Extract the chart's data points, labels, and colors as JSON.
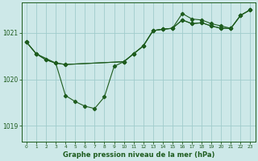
{
  "background_color": "#cde8e8",
  "grid_color": "#a0cccc",
  "line_color": "#1e5c1e",
  "title": "Graphe pression niveau de la mer (hPa)",
  "xlim": [
    -0.5,
    23.5
  ],
  "ylim": [
    1018.65,
    1021.65
  ],
  "yticks": [
    1019,
    1020,
    1021
  ],
  "xticks": [
    0,
    1,
    2,
    3,
    4,
    5,
    6,
    7,
    8,
    9,
    10,
    11,
    12,
    13,
    14,
    15,
    16,
    17,
    18,
    19,
    20,
    21,
    22,
    23
  ],
  "series": [
    {
      "x": [
        0,
        1,
        3,
        4,
        10,
        11,
        12,
        13,
        14,
        15,
        16,
        17,
        18,
        19,
        20,
        21,
        22,
        23
      ],
      "y": [
        1020.8,
        1020.55,
        1020.35,
        1020.32,
        1020.38,
        1020.55,
        1020.72,
        1021.05,
        1021.08,
        1021.1,
        1021.42,
        1021.3,
        1021.28,
        1021.2,
        1021.15,
        1021.1,
        1021.38,
        1021.5
      ]
    },
    {
      "x": [
        0,
        1,
        2,
        3,
        4,
        10,
        11,
        12,
        13,
        14,
        15,
        16,
        17,
        18,
        19,
        20,
        21,
        22,
        23
      ],
      "y": [
        1020.8,
        1020.55,
        1020.42,
        1020.35,
        1020.32,
        1020.38,
        1020.55,
        1020.72,
        1021.05,
        1021.08,
        1021.1,
        1021.28,
        1021.2,
        1021.22,
        1021.15,
        1021.1,
        1021.1,
        1021.38,
        1021.5
      ]
    },
    {
      "x": [
        0,
        1,
        2,
        3,
        4,
        5,
        6,
        7,
        8,
        9,
        10,
        11,
        12,
        13,
        14,
        15,
        16,
        17,
        18,
        19,
        20,
        21,
        22,
        23
      ],
      "y": [
        1020.8,
        1020.55,
        1020.42,
        1020.35,
        1019.65,
        1019.52,
        1019.42,
        1019.37,
        1019.62,
        1020.28,
        1020.38,
        1020.55,
        1020.72,
        1021.05,
        1021.08,
        1021.1,
        1021.28,
        1021.2,
        1021.22,
        1021.15,
        1021.1,
        1021.1,
        1021.38,
        1021.5
      ]
    }
  ]
}
